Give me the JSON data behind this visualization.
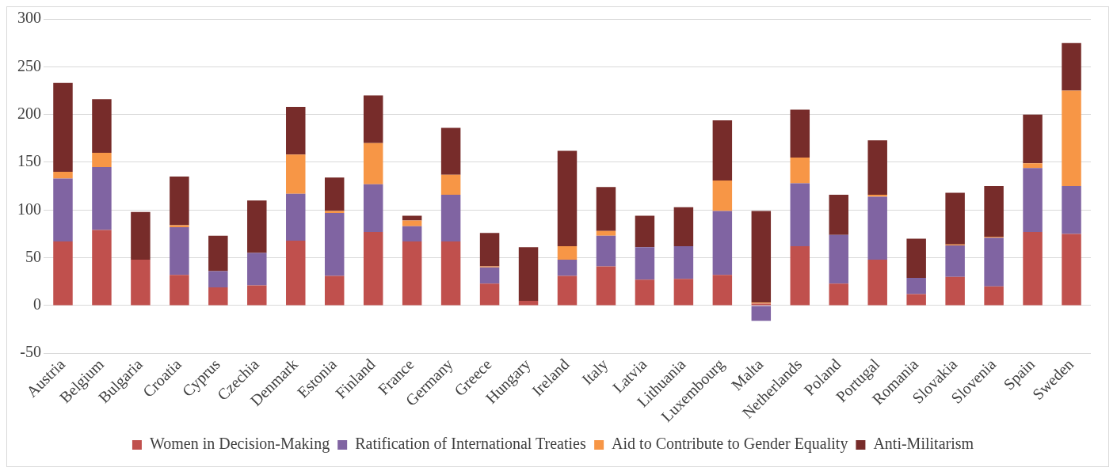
{
  "chart_data": {
    "type": "bar",
    "stacked": true,
    "categories": [
      "Austria",
      "Belgium",
      "Bulgaria",
      "Croatia",
      "Cyprus",
      "Czechia",
      "Denmark",
      "Estonia",
      "Finland",
      "France",
      "Germany",
      "Greece",
      "Hungary",
      "Ireland",
      "Italy",
      "Latvia",
      "Lithuania",
      "Luxembourg",
      "Malta",
      "Netherlands",
      "Poland",
      "Portugal",
      "Romania",
      "Slovakia",
      "Slovenia",
      "Spain",
      "Sweden"
    ],
    "series": [
      {
        "name": "Women in Decision-Making",
        "color": "#c0504d",
        "values": [
          67,
          79,
          48,
          32,
          19,
          21,
          68,
          31,
          77,
          67,
          67,
          23,
          5,
          31,
          41,
          27,
          28,
          32,
          2,
          62,
          23,
          48,
          12,
          30,
          20,
          77,
          75
        ]
      },
      {
        "name": "Ratification of International Treaties",
        "color": "#8064a2",
        "values": [
          66,
          66,
          0,
          50,
          17,
          34,
          49,
          66,
          50,
          16,
          49,
          17,
          0,
          17,
          32,
          34,
          34,
          67,
          -16,
          66,
          51,
          66,
          17,
          33,
          51,
          67,
          50
        ]
      },
      {
        "name": "Aid to Contribute to Gender Equality",
        "color": "#f79646",
        "values": [
          7,
          15,
          0,
          2,
          0,
          0,
          41,
          2,
          43,
          6,
          21,
          1,
          0,
          14,
          5,
          0,
          0,
          32,
          1,
          27,
          0,
          2,
          0,
          1,
          1,
          5,
          100
        ]
      },
      {
        "name": "Anti-Militarism",
        "color": "#772c2a",
        "values": [
          93,
          56,
          50,
          51,
          37,
          55,
          50,
          35,
          50,
          5,
          49,
          35,
          56,
          100,
          46,
          33,
          41,
          63,
          96,
          50,
          42,
          57,
          41,
          54,
          53,
          51,
          50
        ]
      }
    ],
    "ylim": [
      -50,
      300
    ],
    "yticks": [
      -50,
      0,
      50,
      100,
      150,
      200,
      250,
      300
    ],
    "grid": "y",
    "legend": "bottom"
  }
}
